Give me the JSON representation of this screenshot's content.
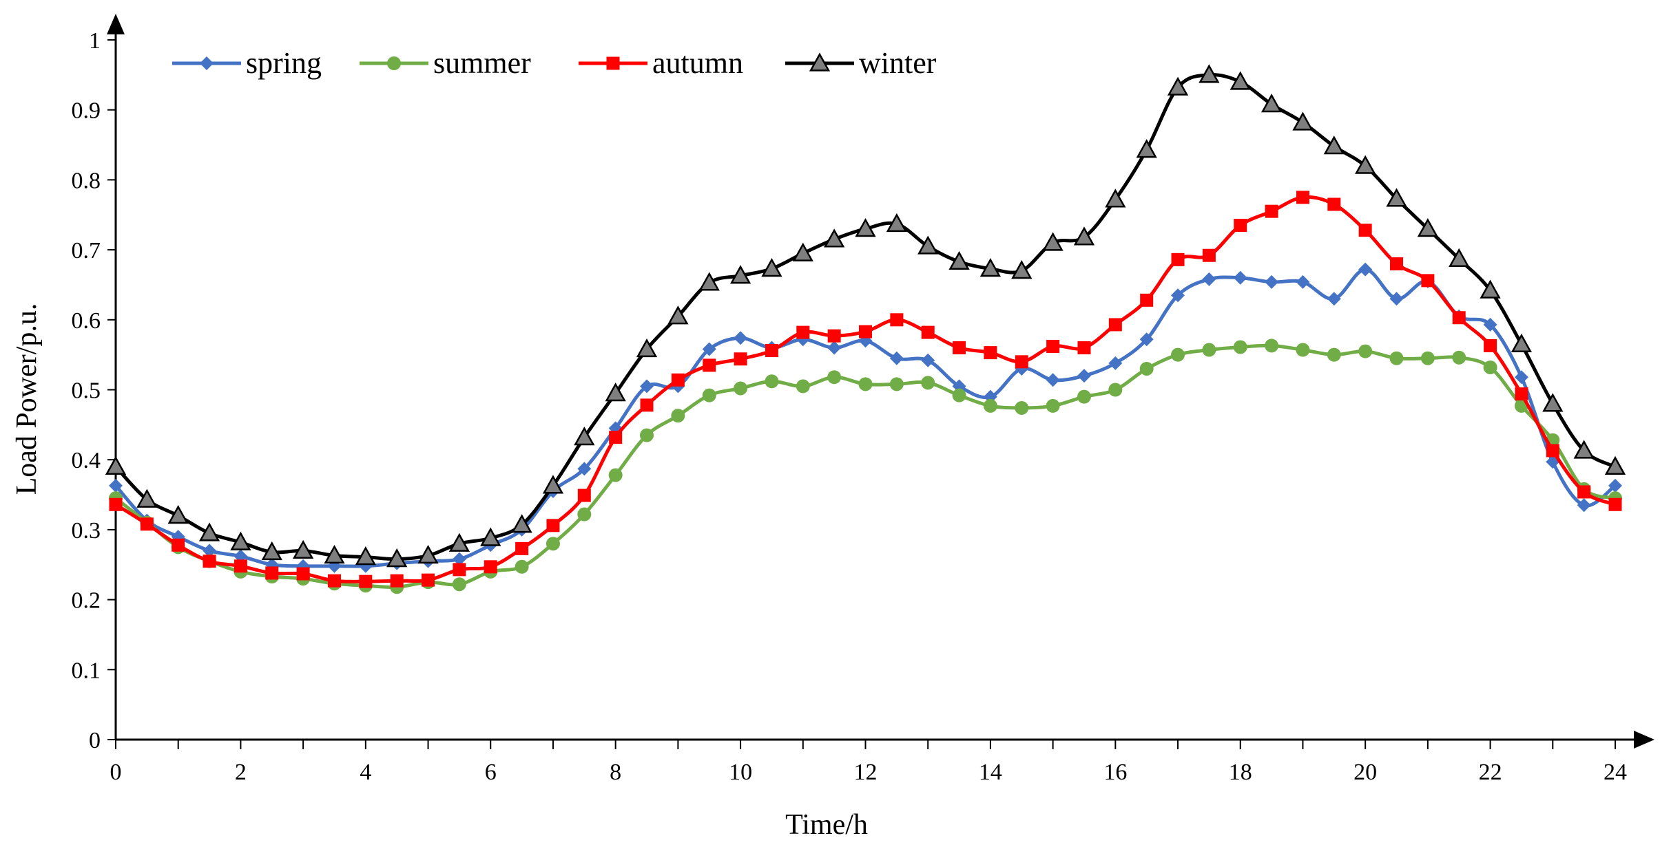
{
  "chart_data": {
    "type": "line",
    "title": "",
    "xlabel": "Time/h",
    "ylabel": "Load Power/p.u.",
    "xlim": [
      0,
      24
    ],
    "ylim": [
      0,
      1
    ],
    "x_ticks": [
      "0",
      "2",
      "4",
      "6",
      "8",
      "10",
      "12",
      "14",
      "16",
      "18",
      "20",
      "22",
      "24"
    ],
    "y_ticks": [
      "0",
      "0.1",
      "0.2",
      "0.3",
      "0.4",
      "0.5",
      "0.6",
      "0.7",
      "0.8",
      "0.9",
      "1"
    ],
    "x_tick_values": [
      0,
      2,
      4,
      6,
      8,
      10,
      12,
      14,
      16,
      18,
      20,
      22,
      24
    ],
    "y_tick_values": [
      0,
      0.1,
      0.2,
      0.3,
      0.4,
      0.5,
      0.6,
      0.7,
      0.8,
      0.9,
      1
    ],
    "minor_x_step": 1,
    "grid": false,
    "legend_position": "top-left",
    "x": [
      0,
      0.5,
      1,
      1.5,
      2,
      2.5,
      3,
      3.5,
      4,
      4.5,
      5,
      5.5,
      6,
      6.5,
      7,
      7.5,
      8,
      8.5,
      9,
      9.5,
      10,
      10.5,
      11,
      11.5,
      12,
      12.5,
      13,
      13.5,
      14,
      14.5,
      15,
      15.5,
      16,
      16.5,
      17,
      17.5,
      18,
      18.5,
      19,
      19.5,
      20,
      20.5,
      21,
      21.5,
      22,
      22.5,
      23,
      23.5,
      24
    ],
    "series": [
      {
        "name": "spring",
        "color": "#4472C4",
        "marker": "diamond",
        "values": [
          0.363,
          0.313,
          0.29,
          0.27,
          0.262,
          0.25,
          0.248,
          0.248,
          0.248,
          0.252,
          0.255,
          0.258,
          0.278,
          0.3,
          0.355,
          0.387,
          0.445,
          0.505,
          0.505,
          0.558,
          0.574,
          0.56,
          0.572,
          0.56,
          0.57,
          0.545,
          0.542,
          0.505,
          0.49,
          0.53,
          0.514,
          0.52,
          0.538,
          0.572,
          0.635,
          0.658,
          0.66,
          0.654,
          0.654,
          0.63,
          0.672,
          0.63,
          0.655,
          0.605,
          0.593,
          0.518,
          0.397,
          0.335,
          0.363
        ]
      },
      {
        "name": "summer",
        "color": "#70AD47",
        "marker": "circle",
        "values": [
          0.345,
          0.31,
          0.275,
          0.255,
          0.24,
          0.233,
          0.23,
          0.223,
          0.22,
          0.218,
          0.225,
          0.222,
          0.24,
          0.247,
          0.28,
          0.322,
          0.378,
          0.435,
          0.463,
          0.492,
          0.502,
          0.512,
          0.505,
          0.518,
          0.508,
          0.508,
          0.51,
          0.492,
          0.477,
          0.474,
          0.477,
          0.49,
          0.5,
          0.53,
          0.55,
          0.557,
          0.561,
          0.563,
          0.557,
          0.55,
          0.555,
          0.545,
          0.545,
          0.546,
          0.532,
          0.477,
          0.428,
          0.358,
          0.345
        ]
      },
      {
        "name": "autumn",
        "color": "#FF0000",
        "marker": "square",
        "values": [
          0.336,
          0.308,
          0.278,
          0.255,
          0.248,
          0.238,
          0.237,
          0.227,
          0.226,
          0.227,
          0.228,
          0.243,
          0.247,
          0.273,
          0.306,
          0.349,
          0.432,
          0.478,
          0.514,
          0.535,
          0.544,
          0.556,
          0.582,
          0.577,
          0.583,
          0.6,
          0.582,
          0.56,
          0.553,
          0.54,
          0.562,
          0.56,
          0.593,
          0.628,
          0.686,
          0.692,
          0.735,
          0.755,
          0.775,
          0.765,
          0.728,
          0.68,
          0.656,
          0.603,
          0.563,
          0.494,
          0.413,
          0.354,
          0.336
        ]
      },
      {
        "name": "winter",
        "color": "#000000",
        "marker": "triangle",
        "values": [
          0.39,
          0.343,
          0.32,
          0.295,
          0.282,
          0.268,
          0.27,
          0.263,
          0.261,
          0.258,
          0.263,
          0.28,
          0.288,
          0.307,
          0.363,
          0.432,
          0.495,
          0.558,
          0.605,
          0.653,
          0.663,
          0.673,
          0.695,
          0.715,
          0.73,
          0.737,
          0.705,
          0.683,
          0.673,
          0.67,
          0.71,
          0.718,
          0.772,
          0.843,
          0.932,
          0.95,
          0.94,
          0.908,
          0.882,
          0.848,
          0.82,
          0.773,
          0.73,
          0.687,
          0.642,
          0.565,
          0.48,
          0.413,
          0.39
        ]
      }
    ]
  }
}
